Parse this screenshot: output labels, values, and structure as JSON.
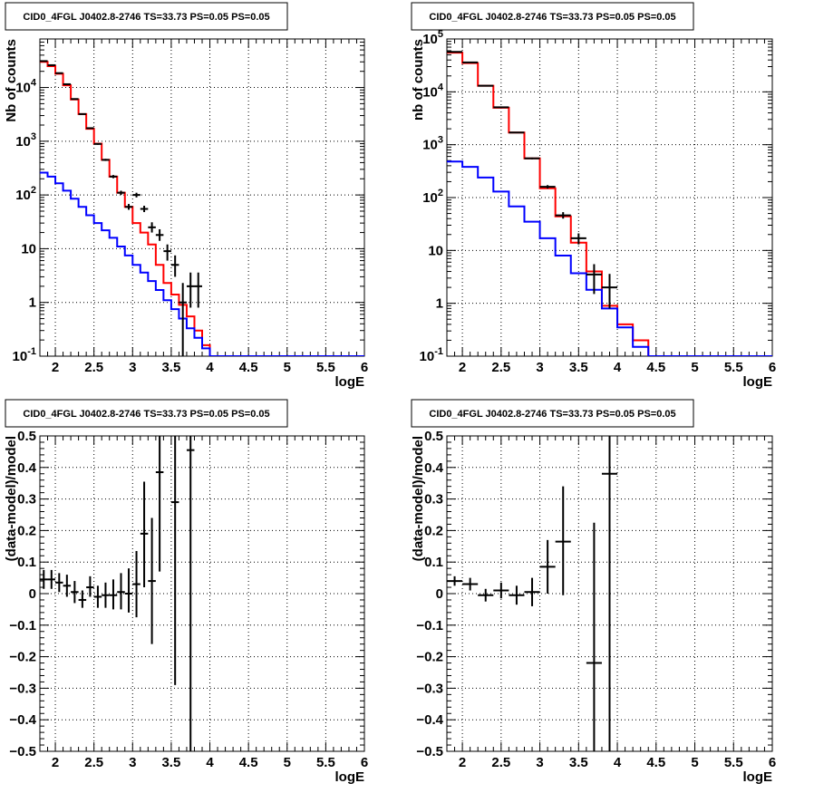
{
  "colors": {
    "data": "#000000",
    "model_total": "#ff0000",
    "model_background": "#0000ff",
    "grid": "#000000",
    "frame": "#000000"
  },
  "chart_data": [
    {
      "type": "step-histogram",
      "title": "CID0_4FGL J0402.8-2746 TS=33.73 PS=0.05 PS=0.05",
      "xlabel": "logE",
      "ylabel": "Nb of counts",
      "xlim": [
        1.8,
        6.0
      ],
      "ylim": [
        0.1,
        80000
      ],
      "yscale": "log",
      "grid": true,
      "xticks": [
        "2",
        "2.5",
        "3",
        "3.5",
        "4",
        "4.5",
        "5",
        "5.5",
        "6"
      ],
      "yticks": [
        {
          "base": "10",
          "exp": "-1"
        },
        {
          "base": "1",
          "exp": ""
        },
        {
          "base": "10",
          "exp": ""
        },
        {
          "base": "10",
          "exp": "2"
        },
        {
          "base": "10",
          "exp": "3"
        },
        {
          "base": "10",
          "exp": "4"
        }
      ],
      "series": [
        {
          "role": "model_total",
          "style": "step",
          "x": [
            1.8,
            1.9,
            2.0,
            2.1,
            2.2,
            2.3,
            2.4,
            2.5,
            2.6,
            2.7,
            2.8,
            2.9,
            3.0,
            3.1,
            3.2,
            3.3,
            3.4,
            3.5,
            3.6,
            3.7,
            3.8,
            3.9,
            4.0,
            4.1,
            4.2,
            4.3,
            4.4,
            4.5,
            4.6,
            4.7,
            4.8,
            4.9,
            5.0,
            5.1,
            5.2,
            5.3,
            5.4,
            5.5,
            5.6,
            5.7,
            5.8,
            5.9,
            6.0
          ],
          "y": [
            30000,
            25000,
            18000,
            11000,
            6000,
            3200,
            1700,
            900,
            450,
            220,
            110,
            60,
            30,
            20,
            12,
            5,
            2.3,
            1.4,
            0.9,
            0.55,
            0.3,
            0.16,
            0.1,
            0.1,
            0.1,
            0.1,
            0.1,
            0.1,
            0.1,
            0.1,
            0.1,
            0.1,
            0.1,
            0.1,
            0.1,
            0.1,
            0.1,
            0.1,
            0.1,
            0.1,
            0.1,
            0.1
          ]
        },
        {
          "role": "model_background",
          "style": "step",
          "x": [
            1.8,
            1.9,
            2.0,
            2.1,
            2.2,
            2.3,
            2.4,
            2.5,
            2.6,
            2.7,
            2.8,
            2.9,
            3.0,
            3.1,
            3.2,
            3.3,
            3.4,
            3.5,
            3.6,
            3.7,
            3.8,
            3.9,
            4.0,
            4.1,
            4.2,
            4.3,
            4.4,
            4.5,
            4.6,
            4.7,
            4.8,
            4.9,
            5.0,
            5.1,
            5.2,
            5.3,
            5.4,
            5.5,
            5.6,
            5.7,
            5.8,
            5.9,
            6.0
          ],
          "y": [
            260,
            220,
            165,
            120,
            85,
            60,
            42,
            30,
            22,
            16,
            11,
            7.5,
            5,
            3.6,
            2.5,
            1.7,
            1.1,
            0.75,
            0.5,
            0.33,
            0.22,
            0.14,
            0.1,
            0.1,
            0.1,
            0.1,
            0.1,
            0.1,
            0.1,
            0.1,
            0.1,
            0.1,
            0.1,
            0.1,
            0.1,
            0.1,
            0.1,
            0.1,
            0.1,
            0.1,
            0.1,
            0.1
          ]
        },
        {
          "role": "data",
          "style": "errorbar",
          "points": [
            {
              "x": 1.85,
              "y": 31000,
              "lo": 30800,
              "hi": 31200
            },
            {
              "x": 1.95,
              "y": 26000,
              "lo": 25800,
              "hi": 26200
            },
            {
              "x": 2.05,
              "y": 18500,
              "lo": 18300,
              "hi": 18700
            },
            {
              "x": 2.15,
              "y": 11500,
              "lo": 11300,
              "hi": 11700
            },
            {
              "x": 2.25,
              "y": 6100,
              "lo": 6000,
              "hi": 6200
            },
            {
              "x": 2.35,
              "y": 3200,
              "lo": 3140,
              "hi": 3260
            },
            {
              "x": 2.45,
              "y": 1750,
              "lo": 1710,
              "hi": 1790
            },
            {
              "x": 2.55,
              "y": 890,
              "lo": 860,
              "hi": 920
            },
            {
              "x": 2.65,
              "y": 450,
              "lo": 430,
              "hi": 470
            },
            {
              "x": 2.75,
              "y": 220,
              "lo": 205,
              "hi": 235
            },
            {
              "x": 2.85,
              "y": 110,
              "lo": 100,
              "hi": 120
            },
            {
              "x": 2.95,
              "y": 60,
              "lo": 53,
              "hi": 68
            },
            {
              "x": 3.05,
              "y": 100,
              "lo": 90,
              "hi": 110
            },
            {
              "x": 3.15,
              "y": 55,
              "lo": 48,
              "hi": 63
            },
            {
              "x": 3.25,
              "y": 25,
              "lo": 20,
              "hi": 31
            },
            {
              "x": 3.35,
              "y": 18,
              "lo": 14,
              "hi": 23
            },
            {
              "x": 3.45,
              "y": 9,
              "lo": 6,
              "hi": 12
            },
            {
              "x": 3.55,
              "y": 5,
              "lo": 3,
              "hi": 7.5
            },
            {
              "x": 3.65,
              "y": 1,
              "lo": 0.1,
              "hi": 2.3
            },
            {
              "x": 3.75,
              "y": 2,
              "lo": 0.8,
              "hi": 3.6
            },
            {
              "x": 3.85,
              "y": 2,
              "lo": 0.8,
              "hi": 3.6
            }
          ]
        }
      ]
    },
    {
      "type": "step-histogram",
      "title": "CID0_4FGL J0402.8-2746 TS=33.73 PS=0.05 PS=0.05",
      "xlabel": "logE",
      "ylabel": "nb of counts",
      "xlim": [
        1.8,
        6.0
      ],
      "ylim": [
        0.1,
        100000
      ],
      "yscale": "log",
      "grid": true,
      "xticks": [
        "2",
        "2.5",
        "3",
        "3.5",
        "4",
        "4.5",
        "5",
        "5.5",
        "6"
      ],
      "yticks": [
        {
          "base": "10",
          "exp": "-1"
        },
        {
          "base": "1",
          "exp": ""
        },
        {
          "base": "10",
          "exp": ""
        },
        {
          "base": "10",
          "exp": "2"
        },
        {
          "base": "10",
          "exp": "3"
        },
        {
          "base": "10",
          "exp": "4"
        },
        {
          "base": "10",
          "exp": "5"
        }
      ],
      "series": [
        {
          "role": "model_total",
          "style": "step",
          "x": [
            1.8,
            2.0,
            2.2,
            2.4,
            2.6,
            2.8,
            3.0,
            3.2,
            3.4,
            3.6,
            3.8,
            4.0,
            4.2,
            4.4,
            4.6,
            4.8,
            5.0,
            5.2,
            5.4,
            5.6,
            5.8,
            6.0
          ],
          "y": [
            55000,
            35000,
            13000,
            5000,
            1700,
            550,
            150,
            44,
            14,
            4,
            0.9,
            0.4,
            0.2,
            0.1,
            0.1,
            0.1,
            0.1,
            0.1,
            0.1,
            0.1,
            0.1
          ]
        },
        {
          "role": "model_background",
          "style": "step",
          "x": [
            1.8,
            2.0,
            2.2,
            2.4,
            2.6,
            2.8,
            3.0,
            3.2,
            3.4,
            3.6,
            3.8,
            4.0,
            4.2,
            4.4,
            4.6,
            4.8,
            5.0,
            5.2,
            5.4,
            5.6,
            5.8,
            6.0
          ],
          "y": [
            480,
            380,
            240,
            130,
            68,
            35,
            17,
            8,
            3.7,
            1.8,
            0.8,
            0.35,
            0.15,
            0.1,
            0.1,
            0.1,
            0.1,
            0.1,
            0.1,
            0.1,
            0.1
          ]
        },
        {
          "role": "data",
          "style": "errorbar",
          "points": [
            {
              "x": 1.9,
              "y": 57000,
              "lo": 56600,
              "hi": 57400
            },
            {
              "x": 2.1,
              "y": 36000,
              "lo": 35700,
              "hi": 36300
            },
            {
              "x": 2.3,
              "y": 13000,
              "lo": 12800,
              "hi": 13200
            },
            {
              "x": 2.5,
              "y": 5100,
              "lo": 5000,
              "hi": 5200
            },
            {
              "x": 2.7,
              "y": 1700,
              "lo": 1660,
              "hi": 1740
            },
            {
              "x": 2.9,
              "y": 550,
              "lo": 530,
              "hi": 570
            },
            {
              "x": 3.1,
              "y": 160,
              "lo": 148,
              "hi": 172
            },
            {
              "x": 3.3,
              "y": 46,
              "lo": 40,
              "hi": 53
            },
            {
              "x": 3.5,
              "y": 17,
              "lo": 13,
              "hi": 21
            },
            {
              "x": 3.7,
              "y": 3.5,
              "lo": 1.5,
              "hi": 5.5
            },
            {
              "x": 3.9,
              "y": 2,
              "lo": 0.8,
              "hi": 3.6
            }
          ]
        }
      ]
    },
    {
      "type": "scatter-errorbar",
      "title": "CID0_4FGL J0402.8-2746 TS=33.73 PS=0.05 PS=0.05",
      "xlabel": "logE",
      "ylabel": "(data-model)/model",
      "xlim": [
        1.8,
        6.0
      ],
      "ylim": [
        -0.5,
        0.5
      ],
      "yscale": "linear",
      "grid": true,
      "xticks": [
        "2",
        "2.5",
        "3",
        "3.5",
        "4",
        "4.5",
        "5",
        "5.5",
        "6"
      ],
      "yticks_values": [
        -0.5,
        -0.4,
        -0.3,
        -0.2,
        -0.1,
        0,
        0.1,
        0.2,
        0.3,
        0.4,
        0.5
      ],
      "yticks": [
        "−0.5",
        "−0.4",
        "−0.3",
        "−0.2",
        "−0.1",
        "0",
        "0.1",
        "0.2",
        "0.3",
        "0.4",
        "0.5"
      ],
      "series": [
        {
          "role": "data",
          "style": "errorbar",
          "xhalf": 0.05,
          "points": [
            {
              "x": 1.85,
              "y": 0.045,
              "lo": 0.015,
              "hi": 0.075
            },
            {
              "x": 1.95,
              "y": 0.045,
              "lo": 0.015,
              "hi": 0.075
            },
            {
              "x": 2.05,
              "y": 0.035,
              "lo": 0.005,
              "hi": 0.065
            },
            {
              "x": 2.15,
              "y": 0.025,
              "lo": -0.01,
              "hi": 0.06
            },
            {
              "x": 2.25,
              "y": 0.005,
              "lo": -0.03,
              "hi": 0.04
            },
            {
              "x": 2.35,
              "y": -0.02,
              "lo": -0.045,
              "hi": 0.01
            },
            {
              "x": 2.45,
              "y": 0.02,
              "lo": -0.01,
              "hi": 0.055
            },
            {
              "x": 2.55,
              "y": -0.01,
              "lo": -0.045,
              "hi": 0.025
            },
            {
              "x": 2.65,
              "y": -0.005,
              "lo": -0.045,
              "hi": 0.035
            },
            {
              "x": 2.75,
              "y": -0.005,
              "lo": -0.05,
              "hi": 0.045
            },
            {
              "x": 2.85,
              "y": 0.005,
              "lo": -0.05,
              "hi": 0.065
            },
            {
              "x": 2.95,
              "y": 0,
              "lo": -0.06,
              "hi": 0.08
            },
            {
              "x": 3.05,
              "y": 0.03,
              "lo": -0.075,
              "hi": 0.135
            },
            {
              "x": 3.15,
              "y": 0.19,
              "lo": 0.02,
              "hi": 0.355
            },
            {
              "x": 3.25,
              "y": 0.04,
              "lo": -0.16,
              "hi": 0.24
            },
            {
              "x": 3.35,
              "y": 0.385,
              "lo": 0.07,
              "hi": 0.7
            },
            {
              "x": 3.55,
              "y": 0.29,
              "lo": -0.29,
              "hi": 0.87
            },
            {
              "x": 3.75,
              "y": 0.455,
              "lo": -0.7,
              "hi": 1.6
            }
          ]
        }
      ]
    },
    {
      "type": "scatter-errorbar",
      "title": "CID0_4FGL J0402.8-2746 TS=33.73 PS=0.05 PS=0.05",
      "xlabel": "logE",
      "ylabel": "(data-model)/model",
      "xlim": [
        1.8,
        6.0
      ],
      "ylim": [
        -0.5,
        0.5
      ],
      "yscale": "linear",
      "grid": true,
      "xticks": [
        "2",
        "2.5",
        "3",
        "3.5",
        "4",
        "4.5",
        "5",
        "5.5",
        "6"
      ],
      "yticks_values": [
        -0.5,
        -0.4,
        -0.3,
        -0.2,
        -0.1,
        0,
        0.1,
        0.2,
        0.3,
        0.4,
        0.5
      ],
      "yticks": [
        "−0.5",
        "−0.4",
        "−0.3",
        "−0.2",
        "−0.1",
        "0",
        "0.1",
        "0.2",
        "0.3",
        "0.4",
        "0.5"
      ],
      "series": [
        {
          "role": "data",
          "style": "errorbar",
          "xhalf": 0.1,
          "points": [
            {
              "x": 1.9,
              "y": 0.04,
              "lo": 0.025,
              "hi": 0.055
            },
            {
              "x": 2.1,
              "y": 0.03,
              "lo": 0.01,
              "hi": 0.05
            },
            {
              "x": 2.3,
              "y": -0.005,
              "lo": -0.025,
              "hi": 0.015
            },
            {
              "x": 2.5,
              "y": 0.01,
              "lo": -0.015,
              "hi": 0.035
            },
            {
              "x": 2.7,
              "y": -0.005,
              "lo": -0.035,
              "hi": 0.025
            },
            {
              "x": 2.9,
              "y": 0.005,
              "lo": -0.04,
              "hi": 0.05
            },
            {
              "x": 3.1,
              "y": 0.085,
              "lo": 0.0,
              "hi": 0.17
            },
            {
              "x": 3.3,
              "y": 0.165,
              "lo": -0.005,
              "hi": 0.34
            },
            {
              "x": 3.7,
              "y": -0.22,
              "lo": -0.7,
              "hi": 0.225
            },
            {
              "x": 3.9,
              "y": 0.38,
              "lo": -0.7,
              "hi": 1.4
            }
          ]
        }
      ]
    }
  ]
}
